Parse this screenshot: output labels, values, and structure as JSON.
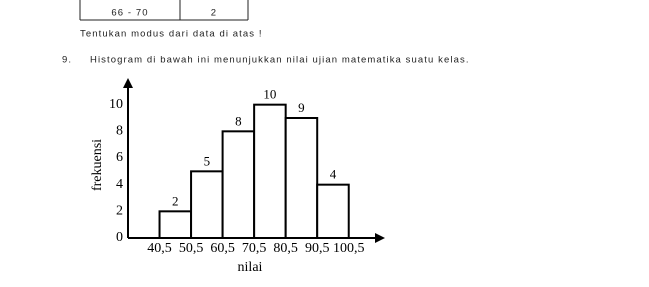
{
  "table": {
    "rows": [
      [
        "66 - 70",
        "2"
      ]
    ]
  },
  "instruction": "Tentukan modus dari data di atas !",
  "question": {
    "number": "9.",
    "text": "Histogram di bawah ini menunjukkan nilai ujian matematika suatu kelas."
  },
  "chart_data": {
    "type": "histogram",
    "bins": [
      {
        "value": 40.5,
        "label": "40,5"
      },
      {
        "value": 50.5,
        "label": "50,5"
      },
      {
        "value": 60.5,
        "label": "60,5"
      },
      {
        "value": 70.5,
        "label": "70,5"
      },
      {
        "value": 80.5,
        "label": "80,5"
      },
      {
        "value": 90.5,
        "label": "90,5"
      },
      {
        "value": 100.5,
        "label": "100,5"
      }
    ],
    "values": [
      2,
      5,
      8,
      10,
      9,
      4
    ],
    "x_label": "nilai",
    "y_label": "frekuensi",
    "xlim": [
      30.5,
      112
    ],
    "ylim": [
      0,
      12
    ],
    "yticks": [
      0,
      2,
      4,
      6,
      8,
      10
    ],
    "color": "#ffffff"
  }
}
